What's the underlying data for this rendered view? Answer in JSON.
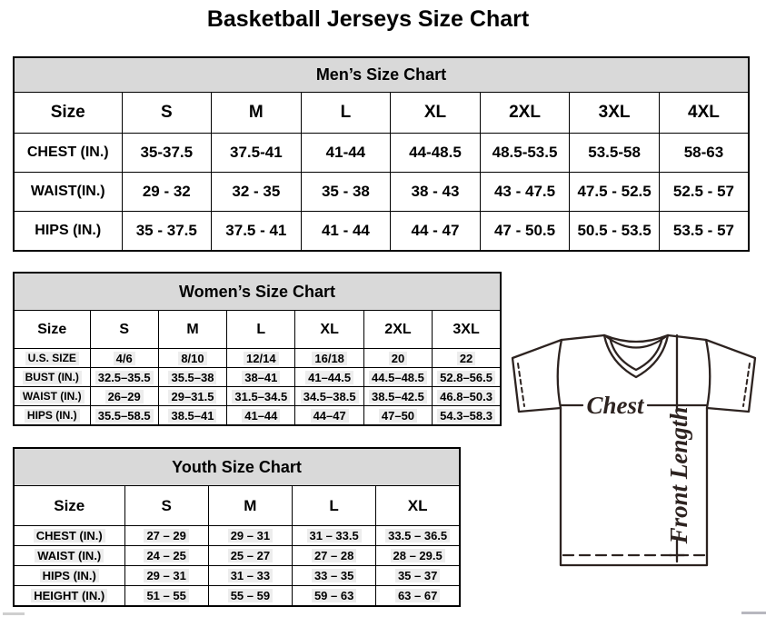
{
  "page_title": "Basketball Jerseys Size Chart",
  "colors": {
    "table_header_bg": "#d9d9d9",
    "table_border": "#000000",
    "jersey_line": "#2d2320"
  },
  "tables": {
    "mens": {
      "title": "Men’s Size Chart",
      "columns": [
        "Size",
        "S",
        "M",
        "L",
        "XL",
        "2XL",
        "3XL",
        "4XL"
      ],
      "rows": [
        {
          "label": "CHEST (IN.)",
          "values": [
            "35-37.5",
            "37.5-41",
            "41-44",
            "44-48.5",
            "48.5-53.5",
            "53.5-58",
            "58-63"
          ]
        },
        {
          "label": "WAIST(IN.)",
          "values": [
            "29 - 32",
            "32 - 35",
            "35 - 38",
            "38 - 43",
            "43 - 47.5",
            "47.5 - 52.5",
            "52.5 - 57"
          ]
        },
        {
          "label": "HIPS (IN.)",
          "values": [
            "35 - 37.5",
            "37.5 - 41",
            "41 - 44",
            "44 - 47",
            "47 - 50.5",
            "50.5 - 53.5",
            "53.5 - 57"
          ]
        }
      ]
    },
    "womens": {
      "title": "Women’s Size Chart",
      "columns": [
        "Size",
        "S",
        "M",
        "L",
        "XL",
        "2XL",
        "3XL"
      ],
      "rows": [
        {
          "label": "U.S. SIZE",
          "values": [
            "4/6",
            "8/10",
            "12/14",
            "16/18",
            "20",
            "22"
          ]
        },
        {
          "label": "BUST (IN.)",
          "values": [
            "32.5–35.5",
            "35.5–38",
            "38–41",
            "41–44.5",
            "44.5–48.5",
            "52.8–56.5"
          ]
        },
        {
          "label": "WAIST (IN.)",
          "values": [
            "26–29",
            "29–31.5",
            "31.5–34.5",
            "34.5–38.5",
            "38.5–42.5",
            "46.8–50.3"
          ]
        },
        {
          "label": "HIPS (IN.)",
          "values": [
            "35.5–58.5",
            "38.5–41",
            "41–44",
            "44–47",
            "47–50",
            "54.3–58.3"
          ]
        }
      ]
    },
    "youth": {
      "title": "Youth Size Chart",
      "columns": [
        "Size",
        "S",
        "M",
        "L",
        "XL"
      ],
      "rows": [
        {
          "label": "CHEST (IN.)",
          "values": [
            "27 – 29",
            "29 – 31",
            "31 – 33.5",
            "33.5 – 36.5"
          ]
        },
        {
          "label": "WAIST (IN.)",
          "values": [
            "24 – 25",
            "25 – 27",
            "27 – 28",
            "28 – 29.5"
          ]
        },
        {
          "label": "HIPS (IN.)",
          "values": [
            "29 – 31",
            "31 – 33",
            "33 – 35",
            "35 – 37"
          ]
        },
        {
          "label": "HEIGHT (IN.)",
          "values": [
            "51 – 55",
            "55 – 59",
            "59 – 63",
            "63 – 67"
          ]
        }
      ]
    }
  },
  "diagram": {
    "chest_label": "Chest",
    "front_length_label": "Front Length"
  }
}
